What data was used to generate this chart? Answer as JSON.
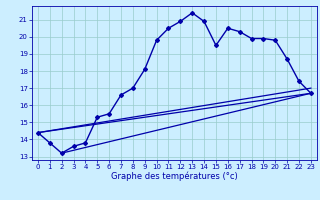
{
  "xlabel": "Graphe des températures (°c)",
  "xlim": [
    -0.5,
    23.5
  ],
  "ylim": [
    12.8,
    21.8
  ],
  "yticks": [
    13,
    14,
    15,
    16,
    17,
    18,
    19,
    20,
    21
  ],
  "xticks": [
    0,
    1,
    2,
    3,
    4,
    5,
    6,
    7,
    8,
    9,
    10,
    11,
    12,
    13,
    14,
    15,
    16,
    17,
    18,
    19,
    20,
    21,
    22,
    23
  ],
  "bg_color": "#cceeff",
  "line_color": "#0000aa",
  "grid_color": "#99cccc",
  "series1_x": [
    0,
    1,
    2,
    3,
    4,
    5,
    6,
    7,
    8,
    9,
    10,
    11,
    12,
    13,
    14,
    15,
    16,
    17,
    18,
    19,
    20,
    21,
    22,
    23
  ],
  "series1_y": [
    14.4,
    13.8,
    13.2,
    13.6,
    13.8,
    15.3,
    15.5,
    16.6,
    17.0,
    18.1,
    19.8,
    20.5,
    20.9,
    21.4,
    20.9,
    19.5,
    20.5,
    20.3,
    19.9,
    19.9,
    19.8,
    18.7,
    17.4,
    16.7
  ],
  "line2_x": [
    0,
    23
  ],
  "line2_y": [
    14.4,
    16.7
  ],
  "line3_x": [
    2,
    23
  ],
  "line3_y": [
    13.2,
    16.7
  ],
  "line4_x": [
    0,
    23
  ],
  "line4_y": [
    14.4,
    17.0
  ]
}
